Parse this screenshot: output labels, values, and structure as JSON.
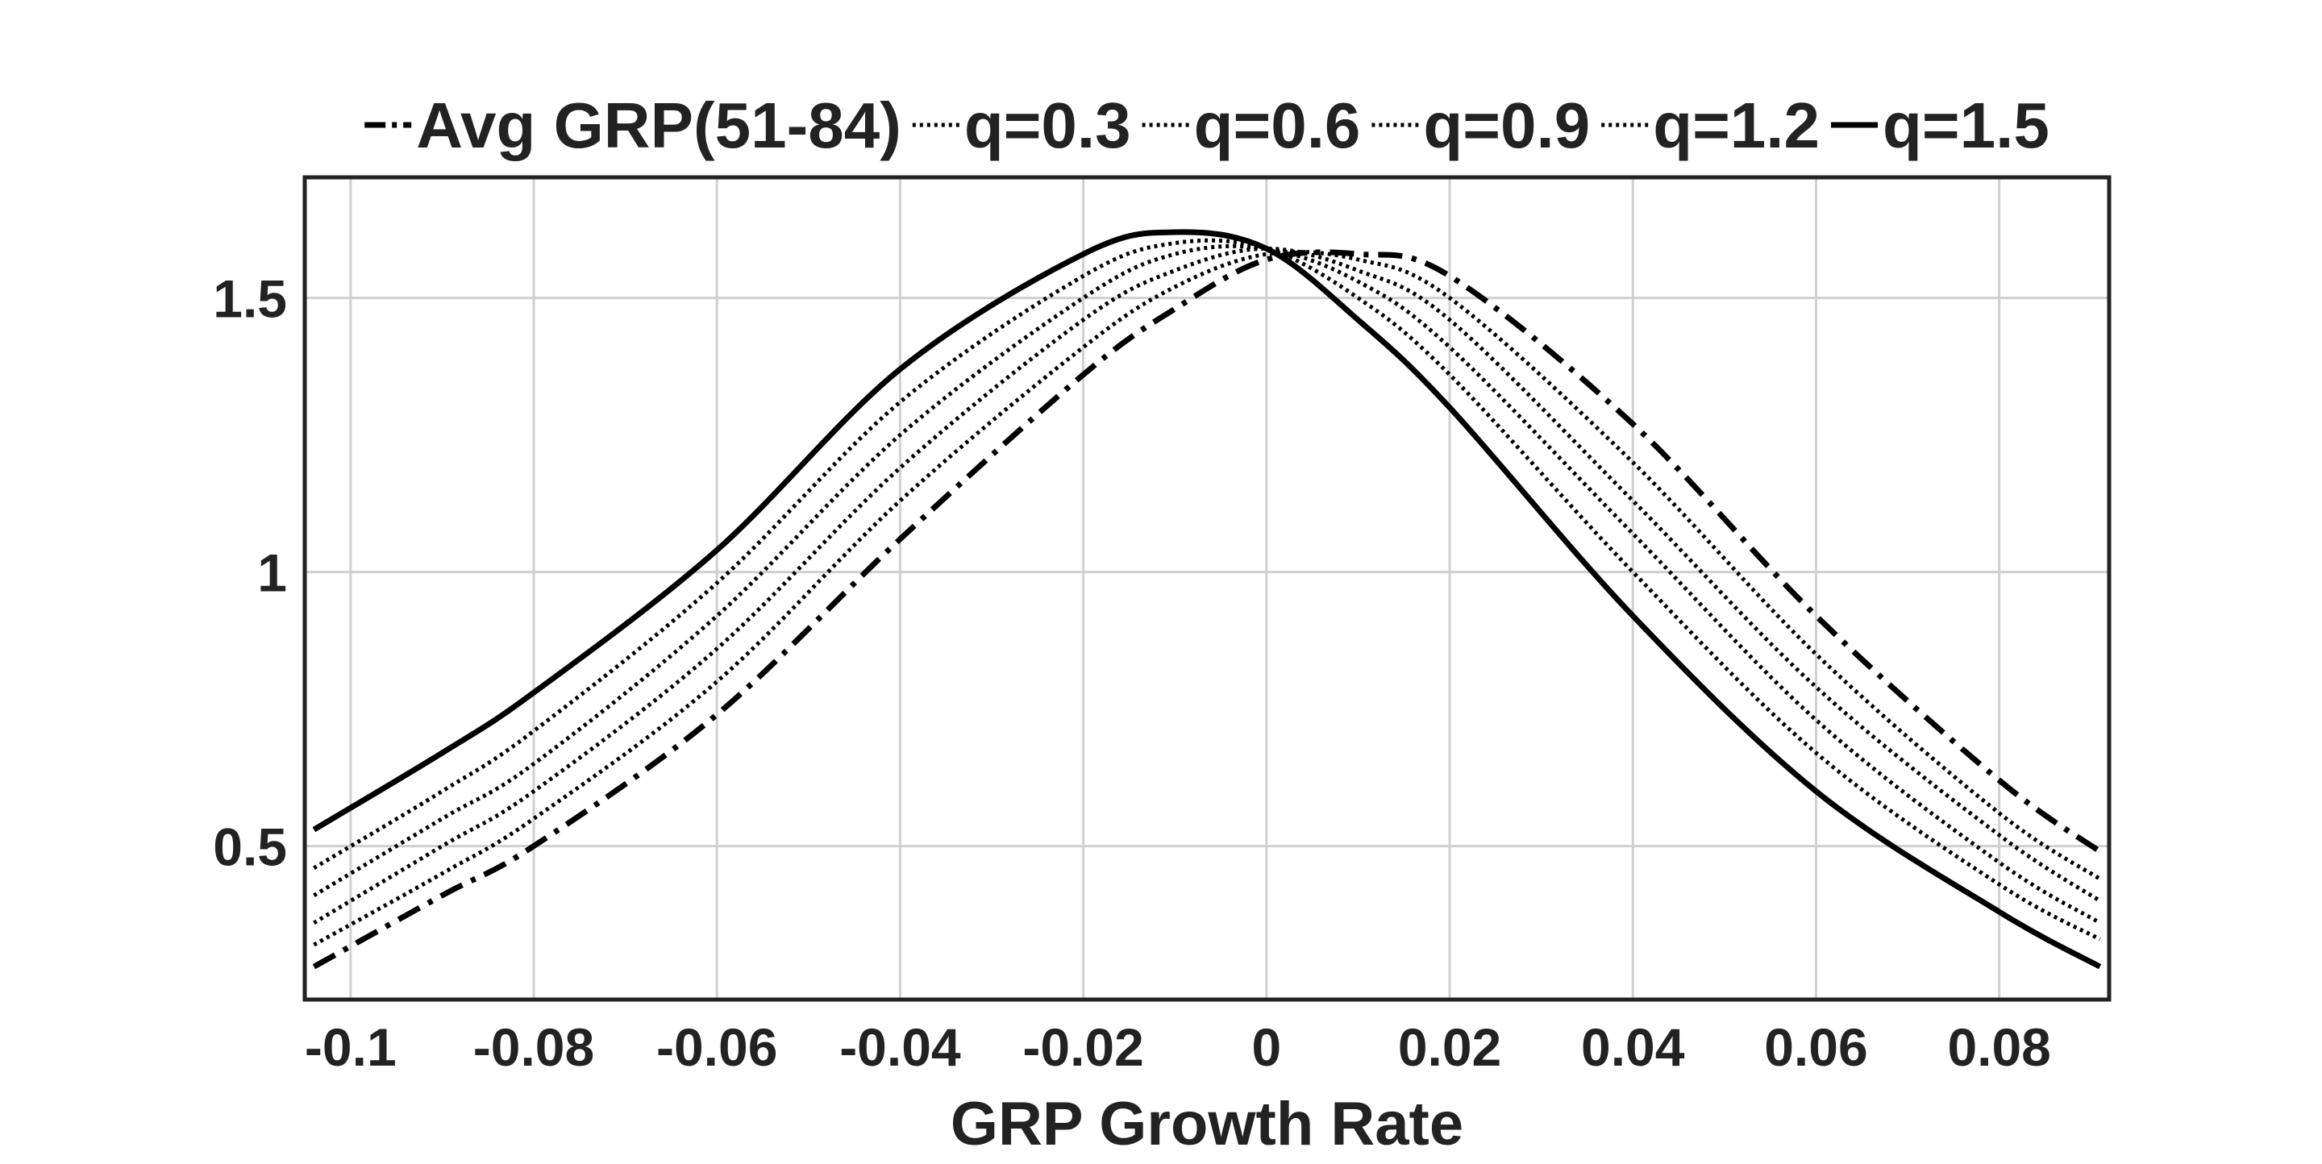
{
  "chart_data": {
    "type": "line",
    "xlabel": "GRP Growth Rate",
    "ylabel": "",
    "xlim": [
      -0.105,
      0.092
    ],
    "ylim": [
      0.22,
      1.72
    ],
    "grid": true,
    "legend_placement": "top",
    "xticks": [
      {
        "value": -0.1,
        "label": "-0.1"
      },
      {
        "value": -0.08,
        "label": "-0.08"
      },
      {
        "value": -0.06,
        "label": "-0.06"
      },
      {
        "value": -0.04,
        "label": "-0.04"
      },
      {
        "value": -0.02,
        "label": "-0.02"
      },
      {
        "value": 0,
        "label": "0"
      },
      {
        "value": 0.02,
        "label": "0.02"
      },
      {
        "value": 0.04,
        "label": "0.04"
      },
      {
        "value": 0.06,
        "label": "0.06"
      },
      {
        "value": 0.08,
        "label": "0.08"
      }
    ],
    "yticks": [
      {
        "value": 0.5,
        "label": "0.5"
      },
      {
        "value": 1,
        "label": "1"
      },
      {
        "value": 1.5,
        "label": "1.5"
      }
    ],
    "colors": {
      "line": "#000000",
      "grid": "#d0d0d0",
      "text": "#222222",
      "frame": "#222222"
    },
    "series": [
      {
        "name": "Avg GRP(51-84)",
        "style": "dash-dot",
        "x": [
          -0.104,
          -0.09,
          -0.08,
          -0.06,
          -0.04,
          -0.02,
          -0.01,
          0,
          0.01,
          0.02,
          0.04,
          0.06,
          0.08,
          0.091
        ],
        "y": [
          0.28,
          0.41,
          0.5,
          0.74,
          1.06,
          1.36,
          1.48,
          1.57,
          1.58,
          1.54,
          1.27,
          0.92,
          0.62,
          0.49
        ]
      },
      {
        "name": "q=0.3",
        "style": "dotted",
        "x": [
          -0.104,
          -0.09,
          -0.08,
          -0.06,
          -0.04,
          -0.02,
          -0.01,
          0,
          0.01,
          0.02,
          0.04,
          0.06,
          0.08,
          0.091
        ],
        "y": [
          0.32,
          0.45,
          0.55,
          0.8,
          1.13,
          1.41,
          1.52,
          1.58,
          1.57,
          1.5,
          1.2,
          0.85,
          0.56,
          0.44
        ]
      },
      {
        "name": "q=0.6",
        "style": "dotted",
        "x": [
          -0.104,
          -0.09,
          -0.08,
          -0.06,
          -0.04,
          -0.02,
          -0.01,
          0,
          0.01,
          0.02,
          0.04,
          0.06,
          0.08,
          0.091
        ],
        "y": [
          0.36,
          0.5,
          0.6,
          0.86,
          1.19,
          1.46,
          1.55,
          1.59,
          1.55,
          1.46,
          1.13,
          0.79,
          0.52,
          0.4
        ]
      },
      {
        "name": "q=0.9",
        "style": "dotted",
        "x": [
          -0.104,
          -0.09,
          -0.08,
          -0.06,
          -0.04,
          -0.02,
          -0.01,
          0,
          0.01,
          0.02,
          0.04,
          0.06,
          0.08,
          0.091
        ],
        "y": [
          0.41,
          0.55,
          0.65,
          0.92,
          1.25,
          1.5,
          1.58,
          1.59,
          1.53,
          1.41,
          1.07,
          0.73,
          0.47,
          0.36
        ]
      },
      {
        "name": "q=1.2",
        "style": "dotted",
        "x": [
          -0.104,
          -0.09,
          -0.08,
          -0.06,
          -0.04,
          -0.02,
          -0.01,
          0,
          0.01,
          0.02,
          0.04,
          0.06,
          0.08,
          0.091
        ],
        "y": [
          0.46,
          0.6,
          0.71,
          0.98,
          1.31,
          1.54,
          1.6,
          1.59,
          1.5,
          1.36,
          1.0,
          0.67,
          0.43,
          0.33
        ]
      },
      {
        "name": "q=1.5",
        "style": "solid",
        "x": [
          -0.104,
          -0.09,
          -0.08,
          -0.06,
          -0.04,
          -0.02,
          -0.01,
          0,
          0.01,
          0.02,
          0.04,
          0.06,
          0.08,
          0.091
        ],
        "y": [
          0.53,
          0.67,
          0.78,
          1.04,
          1.37,
          1.58,
          1.62,
          1.59,
          1.46,
          1.3,
          0.92,
          0.6,
          0.38,
          0.28
        ]
      }
    ]
  }
}
